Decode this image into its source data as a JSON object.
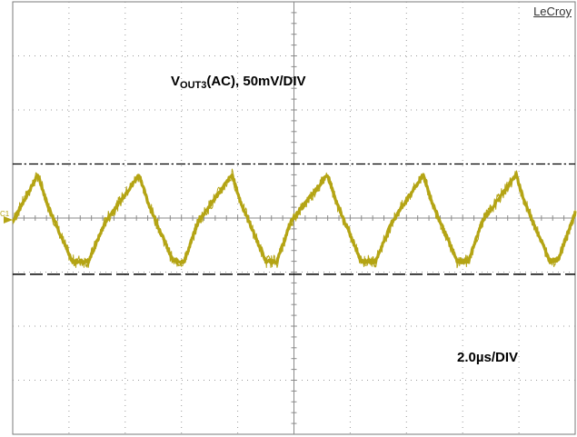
{
  "scope": {
    "brand": "LeCroy",
    "channel_marker": "C1",
    "trace_color": "#b4a414"
  },
  "labels": {
    "voltage_prefix": "V",
    "voltage_sub": "OUT3",
    "voltage_suffix": "(AC), 50mV/DIV",
    "time": "2.0µs/DIV"
  },
  "chart_data": {
    "type": "line",
    "title": "",
    "xlabel": "2.0µs/DIV",
    "ylabel": "VOUT3(AC), 50mV/DIV",
    "xlim": [
      0,
      20
    ],
    "ylim": [
      -200,
      200
    ],
    "grid": true,
    "x_units": "µs",
    "y_units": "mV",
    "reference_lines": [
      {
        "name": "upper",
        "y": 50,
        "style": "dash-dot"
      },
      {
        "name": "lower",
        "y": -52,
        "style": "dashed"
      }
    ],
    "series": [
      {
        "x": [
          0,
          0.9,
          1.2,
          2.1,
          2.7,
          3.3,
          4.5,
          4.8,
          5.7,
          6.1,
          6.6,
          7.8,
          8.1,
          9.0,
          9.4,
          9.9,
          11.2,
          11.5,
          12.4,
          12.9,
          13.5,
          14.6,
          14.9,
          15.8,
          16.2,
          16.7,
          17.9,
          18.2,
          19.1,
          19.4,
          20.0
        ],
        "y": [
          -3,
          40,
          15,
          -40,
          -40,
          -3,
          40,
          15,
          -40,
          -40,
          -3,
          40,
          15,
          -40,
          -40,
          -3,
          40,
          15,
          -40,
          -40,
          -3,
          40,
          15,
          -40,
          -40,
          -3,
          40,
          15,
          -40,
          -38,
          5
        ]
      }
    ]
  }
}
